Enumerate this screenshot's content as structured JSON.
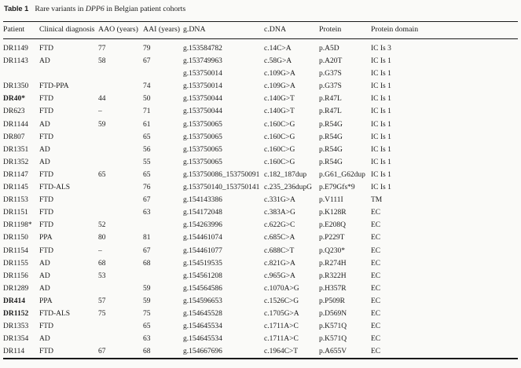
{
  "caption": {
    "label": "Table 1",
    "text_pre": "Rare variants in ",
    "gene": "DPP6",
    "text_post": " in Belgian patient cohorts"
  },
  "colors": {
    "text": "#1b1b1b",
    "rule": "#1a1a1a",
    "background": "#fafaf8"
  },
  "table": {
    "columns": [
      "Patient",
      "Clinical diagnosis",
      "AAO (years)",
      "AAI (years)",
      "g.DNA",
      "c.DNA",
      "Protein",
      "Protein domain"
    ],
    "keys": [
      "patient",
      "clinical-diagnosis",
      "aao-years",
      "aai-years",
      "gdna",
      "cdna",
      "protein",
      "protein-domain"
    ],
    "rows": [
      {
        "bold": false,
        "cells": [
          "DR1149",
          "FTD",
          "77",
          "79",
          "g.153584782",
          "c.14C>A",
          "p.A5D",
          "IC Is 3"
        ]
      },
      {
        "bold": false,
        "cells": [
          "DR1143",
          "AD",
          "58",
          "67",
          "g.153749963",
          "c.58G>A",
          "p.A20T",
          "IC Is 1"
        ]
      },
      {
        "bold": false,
        "cells": [
          "",
          "",
          "",
          "",
          "g.153750014",
          "c.109G>A",
          "p.G37S",
          "IC Is 1"
        ]
      },
      {
        "bold": false,
        "cells": [
          "DR1350",
          "FTD-PPA",
          "",
          "74",
          "g.153750014",
          "c.109G>A",
          "p.G37S",
          "IC Is 1"
        ]
      },
      {
        "bold": true,
        "cells": [
          "DR40*",
          "FTD",
          "44",
          "50",
          "g.153750044",
          "c.140G>T",
          "p.R47L",
          "IC Is 1"
        ]
      },
      {
        "bold": false,
        "cells": [
          "DR623",
          "FTD",
          "–",
          "71",
          "g.153750044",
          "c.140G>T",
          "p.R47L",
          "IC Is 1"
        ]
      },
      {
        "bold": false,
        "cells": [
          "DR1144",
          "AD",
          "59",
          "61",
          "g.153750065",
          "c.160C>G",
          "p.R54G",
          "IC Is 1"
        ]
      },
      {
        "bold": false,
        "cells": [
          "DR807",
          "FTD",
          "",
          "65",
          "g.153750065",
          "c.160C>G",
          "p.R54G",
          "IC Is 1"
        ]
      },
      {
        "bold": false,
        "cells": [
          "DR1351",
          "AD",
          "",
          "56",
          "g.153750065",
          "c.160C>G",
          "p.R54G",
          "IC Is 1"
        ]
      },
      {
        "bold": false,
        "cells": [
          "DR1352",
          "AD",
          "",
          "55",
          "g.153750065",
          "c.160C>G",
          "p.R54G",
          "IC Is 1"
        ]
      },
      {
        "bold": false,
        "cells": [
          "DR1147",
          "FTD",
          "65",
          "65",
          "g.153750086_153750091",
          "c.182_187dup",
          "p.G61_G62dup",
          "IC Is 1"
        ]
      },
      {
        "bold": false,
        "cells": [
          "DR1145",
          "FTD-ALS",
          "",
          "76",
          "g.153750140_153750141",
          "c.235_236dupG",
          "p.E79Gfs*9",
          "IC Is 1"
        ]
      },
      {
        "bold": false,
        "cells": [
          "DR1153",
          "FTD",
          "",
          "67",
          "g.154143386",
          "c.331G>A",
          "p.V111I",
          "TM"
        ]
      },
      {
        "bold": false,
        "cells": [
          "DR1151",
          "FTD",
          "",
          "63",
          "g.154172048",
          "c.383A>G",
          "p.K128R",
          "EC"
        ]
      },
      {
        "bold": false,
        "cells": [
          "DR1198*",
          "FTD",
          "52",
          "",
          "g.154263996",
          "c.622G>C",
          "p.E208Q",
          "EC"
        ]
      },
      {
        "bold": false,
        "cells": [
          "DR1150",
          "PPA",
          "80",
          "81",
          "g.154461074",
          "c.685C>A",
          "p.P229T",
          "EC"
        ]
      },
      {
        "bold": false,
        "cells": [
          "DR1154",
          "FTD",
          "–",
          "67",
          "g.154461077",
          "c.688C>T",
          "p.Q230*",
          "EC"
        ]
      },
      {
        "bold": false,
        "cells": [
          "DR1155",
          "AD",
          "68",
          "68",
          "g.154519535",
          "c.821G>A",
          "p.R274H",
          "EC"
        ]
      },
      {
        "bold": false,
        "cells": [
          "DR1156",
          "AD",
          "53",
          "",
          "g.154561208",
          "c.965G>A",
          "p.R322H",
          "EC"
        ]
      },
      {
        "bold": false,
        "cells": [
          "DR1289",
          "AD",
          "",
          "59",
          "g.154564586",
          "c.1070A>G",
          "p.H357R",
          "EC"
        ]
      },
      {
        "bold": true,
        "cells": [
          "DR414",
          "PPA",
          "57",
          "59",
          "g.154596653",
          "c.1526C>G",
          "p.P509R",
          "EC"
        ]
      },
      {
        "bold": true,
        "cells": [
          "DR1152",
          "FTD-ALS",
          "75",
          "75",
          "g.154645528",
          "c.1705G>A",
          "p.D569N",
          "EC"
        ]
      },
      {
        "bold": false,
        "cells": [
          "DR1353",
          "FTD",
          "",
          "65",
          "g.154645534",
          "c.1711A>C",
          "p.K571Q",
          "EC"
        ]
      },
      {
        "bold": false,
        "cells": [
          "DR1354",
          "AD",
          "",
          "63",
          "g.154645534",
          "c.1711A>C",
          "p.K571Q",
          "EC"
        ]
      },
      {
        "bold": false,
        "cells": [
          "DR114",
          "FTD",
          "67",
          "68",
          "g.154667696",
          "c.1964C>T",
          "p.A655V",
          "EC"
        ]
      }
    ]
  }
}
